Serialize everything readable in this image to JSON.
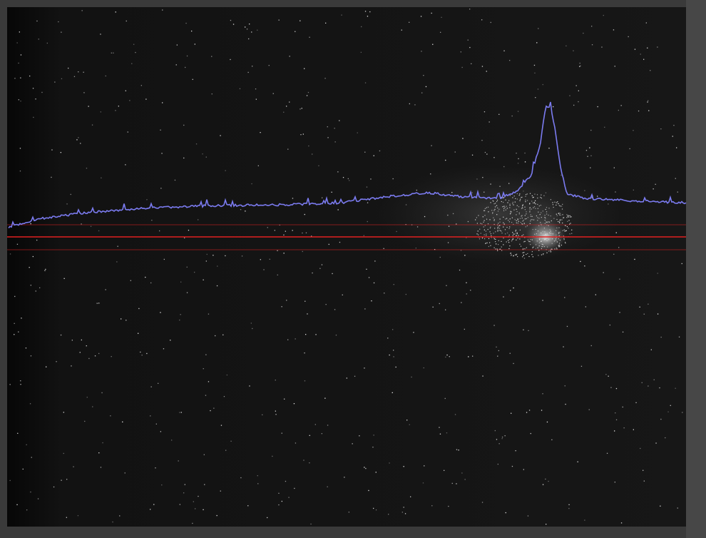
{
  "viewer": {
    "profile_color": "#7b7bf0",
    "roi_color": "#e02020"
  }
}
